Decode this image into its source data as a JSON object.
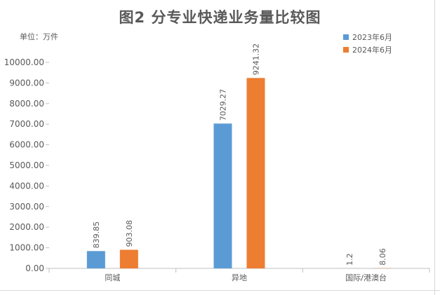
{
  "chart_data": {
    "type": "bar",
    "title": "图2  分专业快递业务量比较图",
    "unit": "单位：万件",
    "categories": [
      "同城",
      "异地",
      "国际/港澳台"
    ],
    "series": [
      {
        "name": "2023年6月",
        "color": "#5b9bd5",
        "values": [
          839.85,
          7029.27,
          1.2
        ],
        "labels": [
          "839.85",
          "7029.27",
          "1.2"
        ]
      },
      {
        "name": "2024年6月",
        "color": "#ed7d31",
        "values": [
          903.08,
          9241.32,
          8.06
        ],
        "labels": [
          "903.08",
          "9241.32",
          "8.06"
        ]
      }
    ],
    "ylim": [
      0,
      10000
    ],
    "yticks": [
      "0.00",
      "1000.00",
      "2000.00",
      "3000.00",
      "4000.00",
      "5000.00",
      "6000.00",
      "7000.00",
      "8000.00",
      "9000.00",
      "10000.00"
    ],
    "grid": false,
    "legend": "top-right"
  }
}
